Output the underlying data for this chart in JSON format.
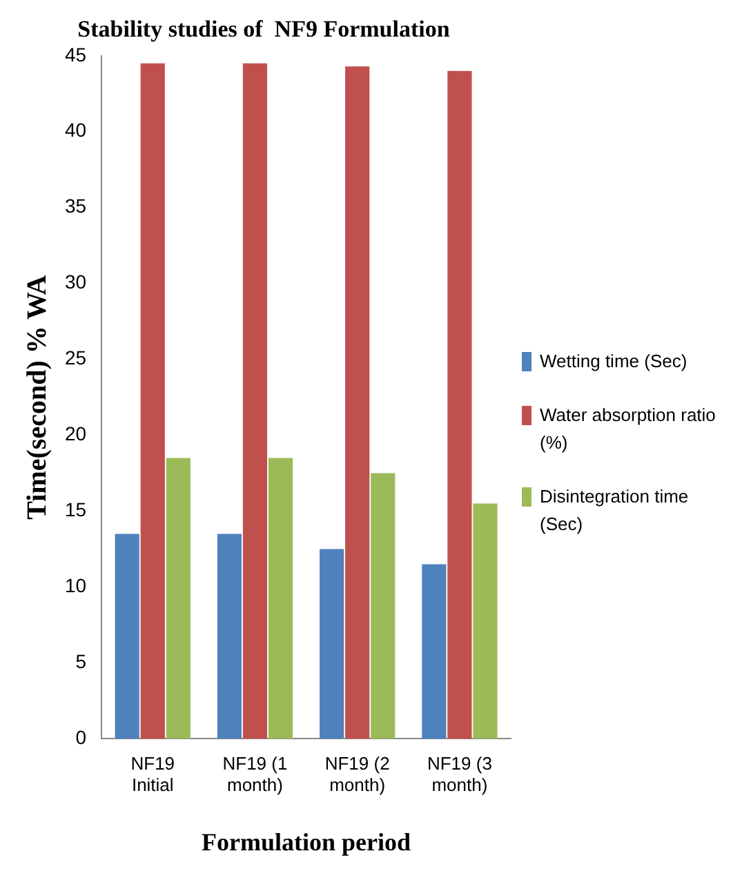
{
  "chart_data": {
    "type": "bar",
    "title": "Stability studies of  NF9 Formulation",
    "xlabel": "Formulation period",
    "ylabel": "Time(second) % WA",
    "categories": [
      "NF19 Initial",
      "NF19 (1 month)",
      "NF19 (2 month)",
      "NF19 (3 month)"
    ],
    "series": [
      {
        "name": "Wetting time (Sec)",
        "color": "#4f81bd",
        "values": [
          13.5,
          13.5,
          12.5,
          11.5
        ]
      },
      {
        "name": "Water absorption ratio (%)",
        "color": "#c0504d",
        "values": [
          44.5,
          44.5,
          44.3,
          44
        ]
      },
      {
        "name": "Disintegration time (Sec)",
        "color": "#9bbb59",
        "values": [
          18.5,
          18.5,
          17.5,
          15.5
        ]
      }
    ],
    "ylim": [
      0,
      45
    ],
    "yticks": [
      0,
      5,
      10,
      15,
      20,
      25,
      30,
      35,
      40,
      45
    ],
    "grid": false,
    "legend": "right"
  }
}
